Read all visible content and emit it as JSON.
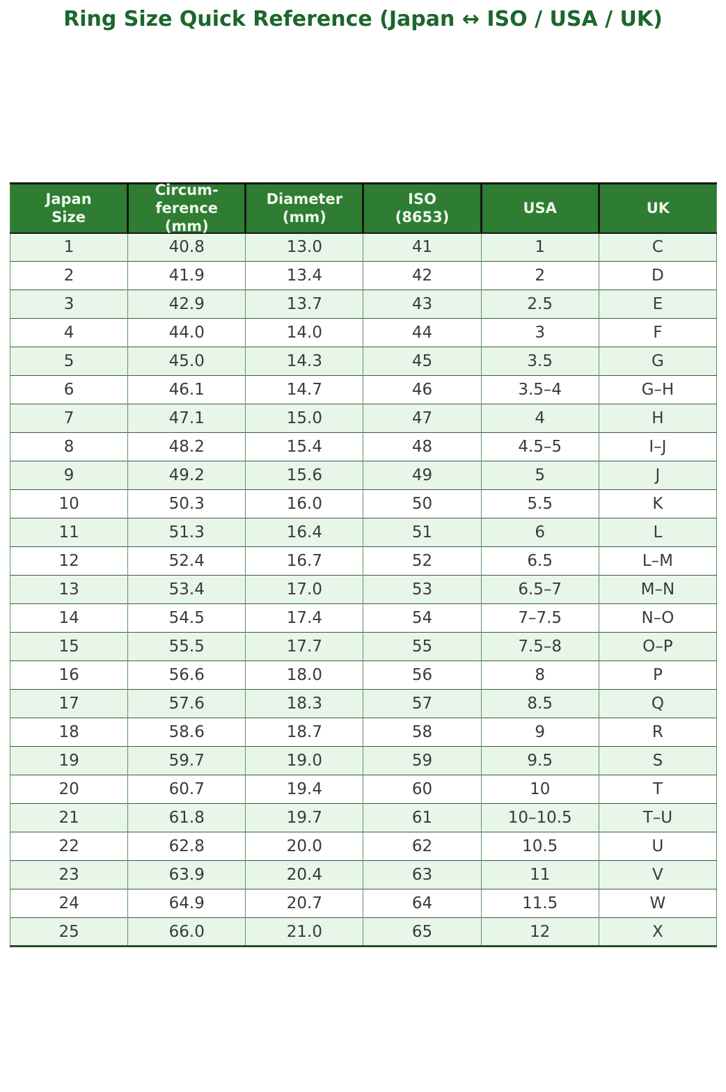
{
  "page_title": "Ring Size Quick Reference (Japan ↔ ISO / USA / UK)",
  "colors": {
    "title": "#1c672c",
    "header_bg": "#2e7d32",
    "header_text": "#eef6ec",
    "row_alt_bg": "#e8f5e9",
    "row_bg": "#ffffff",
    "body_text": "#3a3a3a",
    "header_border": "#161616",
    "grid_vertical": "#5b965d",
    "grid_horizontal": "#3f5a43"
  },
  "chart_data": {
    "type": "table",
    "title": "Ring Size Quick Reference (Japan ↔ ISO / USA / UK)",
    "columns": [
      "Japan Size",
      "Circumference (mm)",
      "Diameter (mm)",
      "ISO (8653)",
      "USA",
      "UK"
    ],
    "header_display": [
      "Japan\nSize",
      "Circum-\nference\n(mm)",
      "Diameter\n(mm)",
      "ISO\n(8653)",
      "USA",
      "UK"
    ],
    "rows": [
      [
        "1",
        "40.8",
        "13.0",
        "41",
        "1",
        "C"
      ],
      [
        "2",
        "41.9",
        "13.4",
        "42",
        "2",
        "D"
      ],
      [
        "3",
        "42.9",
        "13.7",
        "43",
        "2.5",
        "E"
      ],
      [
        "4",
        "44.0",
        "14.0",
        "44",
        "3",
        "F"
      ],
      [
        "5",
        "45.0",
        "14.3",
        "45",
        "3.5",
        "G"
      ],
      [
        "6",
        "46.1",
        "14.7",
        "46",
        "3.5–4",
        "G–H"
      ],
      [
        "7",
        "47.1",
        "15.0",
        "47",
        "4",
        "H"
      ],
      [
        "8",
        "48.2",
        "15.4",
        "48",
        "4.5–5",
        "I–J"
      ],
      [
        "9",
        "49.2",
        "15.6",
        "49",
        "5",
        "J"
      ],
      [
        "10",
        "50.3",
        "16.0",
        "50",
        "5.5",
        "K"
      ],
      [
        "11",
        "51.3",
        "16.4",
        "51",
        "6",
        "L"
      ],
      [
        "12",
        "52.4",
        "16.7",
        "52",
        "6.5",
        "L–M"
      ],
      [
        "13",
        "53.4",
        "17.0",
        "53",
        "6.5–7",
        "M–N"
      ],
      [
        "14",
        "54.5",
        "17.4",
        "54",
        "7–7.5",
        "N–O"
      ],
      [
        "15",
        "55.5",
        "17.7",
        "55",
        "7.5–8",
        "O–P"
      ],
      [
        "16",
        "56.6",
        "18.0",
        "56",
        "8",
        "P"
      ],
      [
        "17",
        "57.6",
        "18.3",
        "57",
        "8.5",
        "Q"
      ],
      [
        "18",
        "58.6",
        "18.7",
        "58",
        "9",
        "R"
      ],
      [
        "19",
        "59.7",
        "19.0",
        "59",
        "9.5",
        "S"
      ],
      [
        "20",
        "60.7",
        "19.4",
        "60",
        "10",
        "T"
      ],
      [
        "21",
        "61.8",
        "19.7",
        "61",
        "10–10.5",
        "T–U"
      ],
      [
        "22",
        "62.8",
        "20.0",
        "62",
        "10.5",
        "U"
      ],
      [
        "23",
        "63.9",
        "20.4",
        "63",
        "11",
        "V"
      ],
      [
        "24",
        "64.9",
        "20.7",
        "64",
        "11.5",
        "W"
      ],
      [
        "25",
        "66.0",
        "21.0",
        "65",
        "12",
        "X"
      ]
    ]
  }
}
